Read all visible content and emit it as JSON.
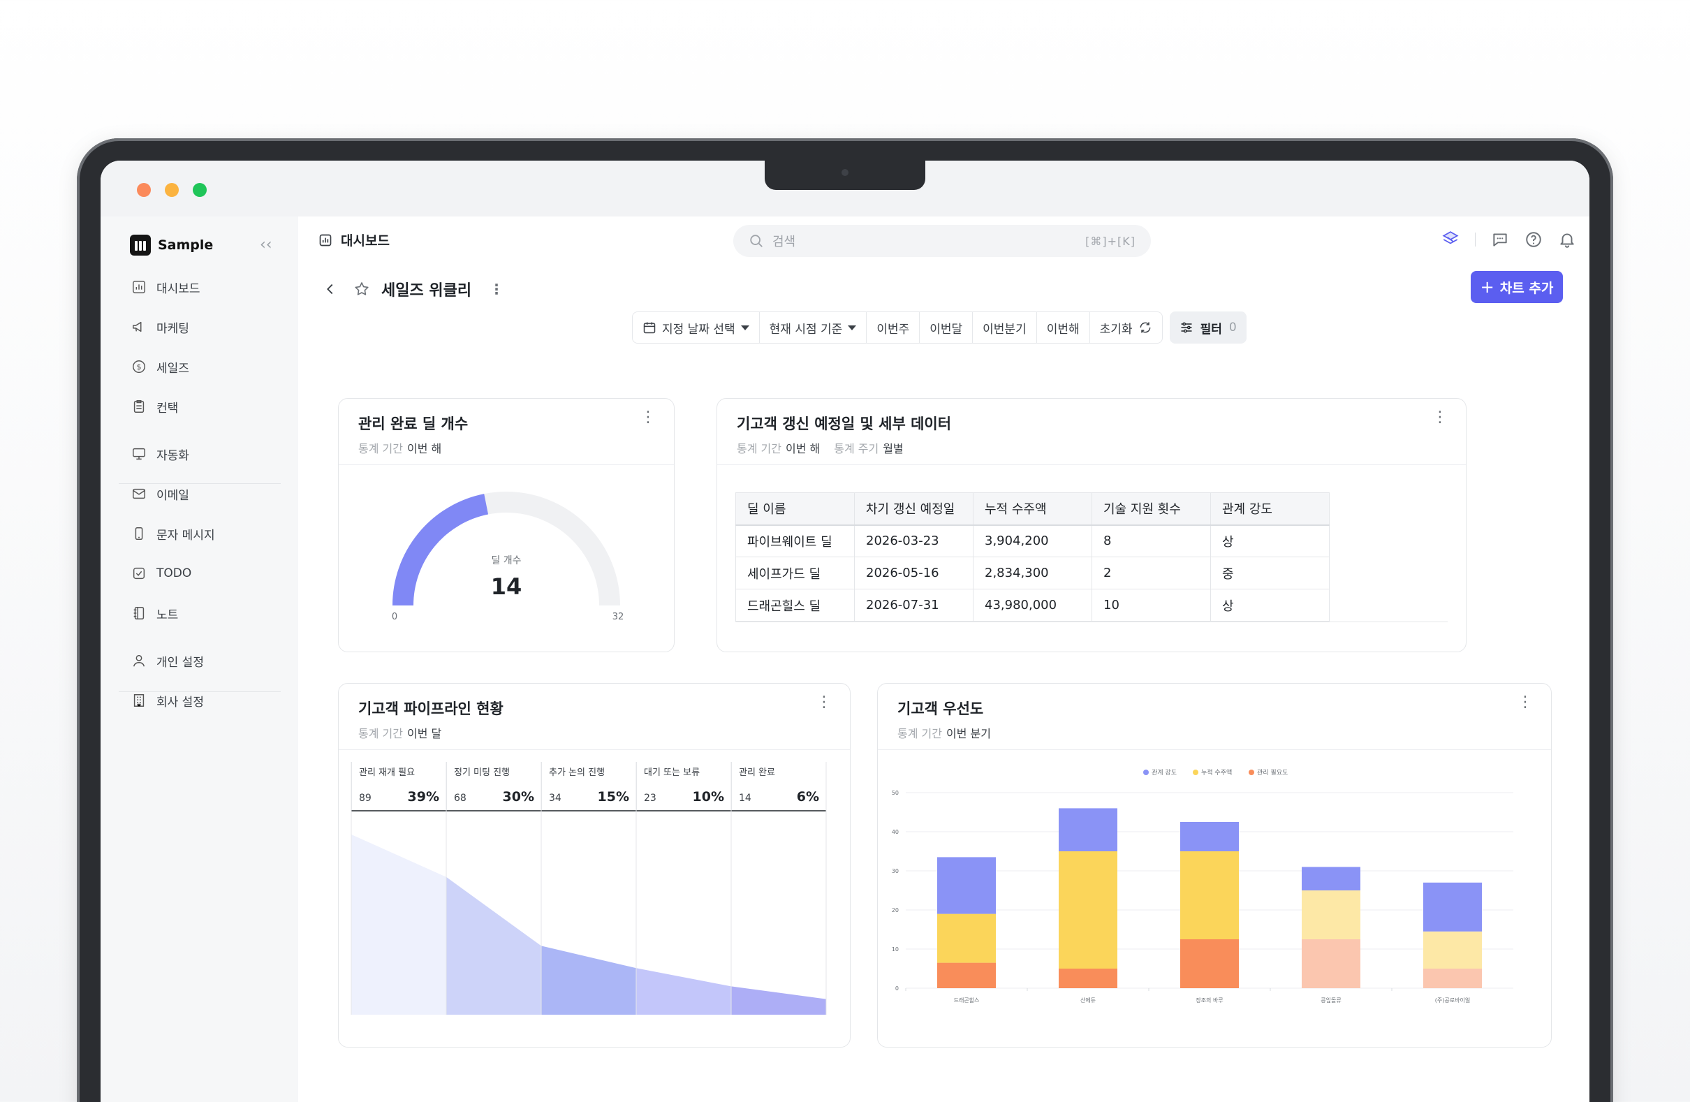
{
  "app": {
    "name": "Sample"
  },
  "sidebar": {
    "items": [
      {
        "label": "대시보드",
        "icon": "chart-icon"
      },
      {
        "label": "마케팅",
        "icon": "megaphone-icon"
      },
      {
        "label": "세일즈",
        "icon": "dollar-icon"
      },
      {
        "label": "컨택",
        "icon": "contact-icon"
      },
      {
        "label": "자동화",
        "icon": "monitor-icon"
      },
      {
        "label": "이메일",
        "icon": "mail-icon"
      },
      {
        "label": "문자 메시지",
        "icon": "phone-icon"
      },
      {
        "label": "TODO",
        "icon": "check-icon"
      },
      {
        "label": "노트",
        "icon": "notebook-icon"
      },
      {
        "label": "개인 설정",
        "icon": "user-icon"
      },
      {
        "label": "회사 설정",
        "icon": "building-icon"
      }
    ]
  },
  "topbar": {
    "title": "대시보드",
    "search_placeholder": "검색",
    "search_shortcut": "[⌘]+[K]"
  },
  "page": {
    "title": "세일즈 위클리",
    "add_chart_label": "차트 추가"
  },
  "filters": {
    "date_select": "지정 날짜 선택",
    "basis": "현재 시점 기준",
    "this_week": "이번주",
    "this_month": "이번달",
    "this_quarter": "이번분기",
    "this_year": "이번해",
    "reset": "초기화",
    "filter_label": "필터",
    "filter_count": "0"
  },
  "cards": {
    "gauge": {
      "title": "관리 완료 딜 개수",
      "period_label": "통계 기간",
      "period_value": "이번 해",
      "center_label": "딜 개수",
      "value": "14",
      "min": "0",
      "max": "32",
      "fill_fraction": 0.4375,
      "colors": {
        "fill": "#8088f5",
        "track": "#f0f1f3"
      }
    },
    "renewal": {
      "title": "기고객 갱신 예정일 및 세부 데이터",
      "period_label": "통계 기간",
      "period_value": "이번 해",
      "cycle_label": "통계 주기",
      "cycle_value": "월별",
      "columns": [
        "딜 이름",
        "차기 갱신 예정일",
        "누적 수주액",
        "기술 지원 횟수",
        "관계 강도"
      ],
      "rows": [
        [
          "파이브웨이트 딜",
          "2026-03-23",
          "3,904,200",
          "8",
          "상"
        ],
        [
          "세이프가드 딜",
          "2026-05-16",
          "2,834,300",
          "2",
          "중"
        ],
        [
          "드래곤힐스 딜",
          "2026-07-31",
          "43,980,000",
          "10",
          "상"
        ]
      ]
    },
    "pipeline": {
      "title": "기고객 파이프라인 현황",
      "period_label": "통계 기간",
      "period_value": "이번 달",
      "stages": [
        {
          "label": "관리 재개 필요",
          "count": "89",
          "pct": "39%"
        },
        {
          "label": "정기 미팅 진행",
          "count": "68",
          "pct": "30%"
        },
        {
          "label": "추가 논의 진행",
          "count": "34",
          "pct": "15%"
        },
        {
          "label": "대기 또는 보류",
          "count": "23",
          "pct": "10%"
        },
        {
          "label": "관리 완료",
          "count": "14",
          "pct": "6%"
        }
      ],
      "colors": [
        "#eef1fd",
        "#cdd3f9",
        "#abb6f6",
        "#c3c6fa",
        "#adaef6"
      ]
    },
    "priority": {
      "title": "기고객 우선도",
      "period_label": "통계 기간",
      "period_value": "이번 분기"
    }
  },
  "chart_data": {
    "type": "bar",
    "stacked": true,
    "categories": [
      "드래곤힐스",
      "산에듀",
      "장조의 바루",
      "콩잎돌류",
      "(주)공로바이얼"
    ],
    "series": [
      {
        "name": "관리 필요도",
        "values": [
          6.5,
          5,
          12.5,
          12.5,
          5
        ],
        "color": "#f98d5a",
        "faded": [
          false,
          false,
          false,
          true,
          true
        ],
        "faded_color": "#fbc6af"
      },
      {
        "name": "누적 수주액",
        "values": [
          12.5,
          30,
          22.5,
          12.5,
          9.5
        ],
        "color": "#fbd55a",
        "faded": [
          false,
          false,
          false,
          true,
          true
        ],
        "faded_color": "#fde8a6"
      },
      {
        "name": "관계 강도",
        "values": [
          14.5,
          11,
          7.5,
          6,
          12.5
        ],
        "color": "#8a93f6"
      }
    ],
    "legend": [
      "관계 강도",
      "누적 수주액",
      "관리 필요도"
    ],
    "ylim": [
      0,
      50
    ],
    "yticks": [
      0,
      10,
      20,
      30,
      40,
      50
    ],
    "grid": true,
    "legend_position": "top-center"
  }
}
